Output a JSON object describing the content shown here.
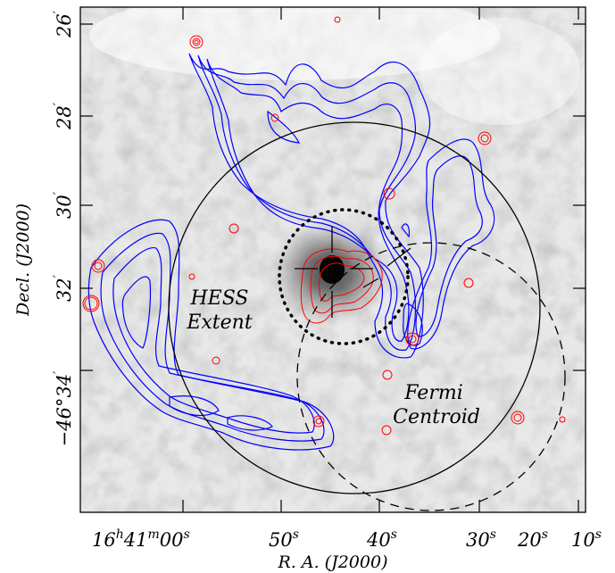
{
  "figure": {
    "xlabel": "R. A. (J2000)",
    "ylabel": "Decl. (J2000)",
    "x_ticks": [
      {
        "h": "16",
        "hs": "h",
        "m": "41",
        "ms": "m",
        "s": "00",
        "ss": "s"
      },
      {
        "s": "50",
        "ss": "s"
      },
      {
        "s": "40",
        "ss": "s"
      },
      {
        "s": "30",
        "ss": "s"
      },
      {
        "s": "20",
        "ss": "s"
      },
      {
        "s": "10",
        "ss": "s"
      }
    ],
    "y_ticks": [
      {
        "label": "26",
        "prime": "′"
      },
      {
        "label": "28",
        "prime": "′"
      },
      {
        "label": "30",
        "prime": "′"
      },
      {
        "label": "32",
        "prime": "′"
      },
      {
        "label": "−46°34",
        "prime": "′"
      }
    ],
    "annotations": {
      "hess_line1": "HESS",
      "hess_line2": "Extent",
      "fermi_line1": "Fermi",
      "fermi_line2": "Centroid"
    }
  },
  "colors": {
    "radio_contours": "#ff0000",
    "other_contours": "#0000ff",
    "circles": "#000000",
    "background_image": "grayscale"
  }
}
